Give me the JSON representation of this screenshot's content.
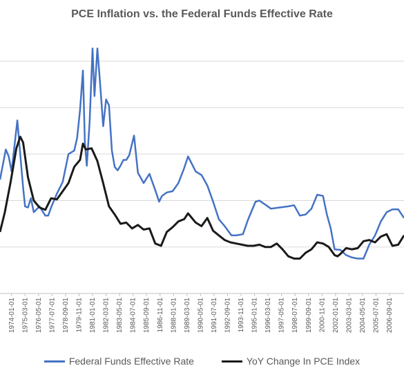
{
  "chart_data": {
    "type": "line",
    "title": "PCE Inflation vs. the Federal Funds Effective Rate",
    "xlabel": "",
    "ylabel": "",
    "x_start": "1973-01",
    "x_end": "2007-12",
    "ylim": [
      -2,
      20
    ],
    "grid": true,
    "legend_position": "bottom",
    "x_tick_labels": [
      "1974-01-01",
      "1975-03-01",
      "1976-05-01",
      "1977-07-01",
      "1978-09-01",
      "1979-11-01",
      "1981-01-01",
      "1982-03-01",
      "1983-05-01",
      "1984-07-01",
      "1985-09-01",
      "1986-11-01",
      "1988-01-01",
      "1989-03-01",
      "1990-05-01",
      "1991-07-01",
      "1992-09-01",
      "1993-11-01",
      "1995-01-01",
      "1996-03-01",
      "1997-05-01",
      "1998-07-01",
      "1999-09-01",
      "2000-11-01",
      "2002-01-01",
      "2003-03-01",
      "2004-05-01",
      "2005-07-01",
      "2006-09-01"
    ],
    "series": [
      {
        "name": "Federal Funds Effective Rate",
        "color": "#4472c4",
        "points": [
          [
            "1973-01",
            7.8
          ],
          [
            "1973-07",
            10.4
          ],
          [
            "1973-10",
            9.8
          ],
          [
            "1974-01",
            8.5
          ],
          [
            "1974-07",
            12.9
          ],
          [
            "1974-10",
            10.0
          ],
          [
            "1975-01",
            7.1
          ],
          [
            "1975-03",
            5.5
          ],
          [
            "1975-06",
            5.4
          ],
          [
            "1975-09",
            6.2
          ],
          [
            "1975-12",
            5.0
          ],
          [
            "1976-06",
            5.5
          ],
          [
            "1976-12",
            4.7
          ],
          [
            "1977-03",
            4.7
          ],
          [
            "1977-06",
            5.4
          ],
          [
            "1977-12",
            6.6
          ],
          [
            "1978-06",
            7.6
          ],
          [
            "1978-12",
            10.0
          ],
          [
            "1979-06",
            10.3
          ],
          [
            "1979-09",
            11.4
          ],
          [
            "1979-12",
            13.8
          ],
          [
            "1980-03",
            17.2
          ],
          [
            "1980-05",
            11.0
          ],
          [
            "1980-07",
            9.0
          ],
          [
            "1980-10",
            12.8
          ],
          [
            "1981-01",
            19.1
          ],
          [
            "1981-03",
            15.0
          ],
          [
            "1981-06",
            19.1
          ],
          [
            "1981-09",
            15.9
          ],
          [
            "1981-12",
            12.4
          ],
          [
            "1982-03",
            14.7
          ],
          [
            "1982-06",
            14.2
          ],
          [
            "1982-09",
            10.3
          ],
          [
            "1982-12",
            8.9
          ],
          [
            "1983-03",
            8.6
          ],
          [
            "1983-06",
            9.0
          ],
          [
            "1983-09",
            9.5
          ],
          [
            "1983-12",
            9.5
          ],
          [
            "1984-03",
            9.9
          ],
          [
            "1984-08",
            11.6
          ],
          [
            "1984-12",
            8.4
          ],
          [
            "1985-06",
            7.5
          ],
          [
            "1985-12",
            8.3
          ],
          [
            "1986-06",
            6.9
          ],
          [
            "1986-10",
            5.9
          ],
          [
            "1987-01",
            6.4
          ],
          [
            "1987-06",
            6.7
          ],
          [
            "1987-12",
            6.8
          ],
          [
            "1988-06",
            7.5
          ],
          [
            "1988-12",
            8.8
          ],
          [
            "1989-04",
            9.8
          ],
          [
            "1989-12",
            8.5
          ],
          [
            "1990-06",
            8.2
          ],
          [
            "1990-12",
            7.3
          ],
          [
            "1991-06",
            5.9
          ],
          [
            "1991-12",
            4.4
          ],
          [
            "1992-06",
            3.8
          ],
          [
            "1993-01",
            3.0
          ],
          [
            "1993-06",
            3.0
          ],
          [
            "1994-01",
            3.1
          ],
          [
            "1994-06",
            4.3
          ],
          [
            "1995-02",
            5.9
          ],
          [
            "1995-06",
            6.0
          ],
          [
            "1996-01",
            5.6
          ],
          [
            "1996-06",
            5.3
          ],
          [
            "1997-03",
            5.4
          ],
          [
            "1997-12",
            5.5
          ],
          [
            "1998-06",
            5.6
          ],
          [
            "1998-12",
            4.7
          ],
          [
            "1999-06",
            4.8
          ],
          [
            "1999-12",
            5.3
          ],
          [
            "2000-06",
            6.5
          ],
          [
            "2000-12",
            6.4
          ],
          [
            "2001-04",
            4.8
          ],
          [
            "2001-08",
            3.6
          ],
          [
            "2001-12",
            1.8
          ],
          [
            "2002-06",
            1.75
          ],
          [
            "2002-12",
            1.3
          ],
          [
            "2003-06",
            1.1
          ],
          [
            "2003-12",
            1.0
          ],
          [
            "2004-06",
            1.0
          ],
          [
            "2004-12",
            2.2
          ],
          [
            "2005-06",
            3.0
          ],
          [
            "2005-12",
            4.2
          ],
          [
            "2006-06",
            5.0
          ],
          [
            "2006-12",
            5.24
          ],
          [
            "2007-06",
            5.25
          ],
          [
            "2007-12",
            4.5
          ]
        ]
      },
      {
        "name": "YoY Change In PCE Index",
        "color": "#1a1a1a",
        "points": [
          [
            "1973-01",
            3.3
          ],
          [
            "1973-06",
            5.0
          ],
          [
            "1973-12",
            7.6
          ],
          [
            "1974-06",
            10.5
          ],
          [
            "1974-10",
            11.5
          ],
          [
            "1975-01",
            11.0
          ],
          [
            "1975-06",
            8.0
          ],
          [
            "1975-12",
            6.0
          ],
          [
            "1976-06",
            5.4
          ],
          [
            "1976-12",
            5.2
          ],
          [
            "1977-06",
            6.2
          ],
          [
            "1977-12",
            6.1
          ],
          [
            "1978-06",
            6.8
          ],
          [
            "1978-12",
            7.5
          ],
          [
            "1979-06",
            8.9
          ],
          [
            "1979-12",
            9.5
          ],
          [
            "1980-03",
            10.9
          ],
          [
            "1980-06",
            10.4
          ],
          [
            "1980-12",
            10.5
          ],
          [
            "1981-06",
            9.4
          ],
          [
            "1981-12",
            7.5
          ],
          [
            "1982-06",
            5.5
          ],
          [
            "1982-12",
            4.8
          ],
          [
            "1983-06",
            4.0
          ],
          [
            "1983-12",
            4.1
          ],
          [
            "1984-06",
            3.6
          ],
          [
            "1984-12",
            3.9
          ],
          [
            "1985-06",
            3.5
          ],
          [
            "1985-12",
            3.6
          ],
          [
            "1986-06",
            2.3
          ],
          [
            "1986-12",
            2.1
          ],
          [
            "1987-06",
            3.3
          ],
          [
            "1987-12",
            3.7
          ],
          [
            "1988-06",
            4.2
          ],
          [
            "1988-12",
            4.4
          ],
          [
            "1989-04",
            4.9
          ],
          [
            "1989-12",
            4.1
          ],
          [
            "1990-06",
            3.8
          ],
          [
            "1990-12",
            4.5
          ],
          [
            "1991-06",
            3.4
          ],
          [
            "1991-12",
            3.0
          ],
          [
            "1992-06",
            2.6
          ],
          [
            "1992-12",
            2.4
          ],
          [
            "1993-06",
            2.3
          ],
          [
            "1993-12",
            2.2
          ],
          [
            "1994-06",
            2.1
          ],
          [
            "1994-12",
            2.1
          ],
          [
            "1995-06",
            2.2
          ],
          [
            "1995-12",
            2.0
          ],
          [
            "1996-06",
            2.0
          ],
          [
            "1996-12",
            2.3
          ],
          [
            "1997-06",
            1.8
          ],
          [
            "1997-12",
            1.2
          ],
          [
            "1998-06",
            1.0
          ],
          [
            "1998-12",
            1.0
          ],
          [
            "1999-06",
            1.5
          ],
          [
            "1999-12",
            1.8
          ],
          [
            "2000-06",
            2.4
          ],
          [
            "2000-12",
            2.3
          ],
          [
            "2001-06",
            2.0
          ],
          [
            "2001-12",
            1.3
          ],
          [
            "2002-03",
            1.2
          ],
          [
            "2002-06",
            1.4
          ],
          [
            "2002-12",
            1.9
          ],
          [
            "2003-06",
            1.8
          ],
          [
            "2003-12",
            1.9
          ],
          [
            "2004-06",
            2.5
          ],
          [
            "2004-12",
            2.6
          ],
          [
            "2005-06",
            2.4
          ],
          [
            "2005-12",
            2.9
          ],
          [
            "2006-06",
            3.1
          ],
          [
            "2006-12",
            2.1
          ],
          [
            "2007-06",
            2.2
          ],
          [
            "2007-12",
            3.0
          ]
        ]
      }
    ]
  }
}
